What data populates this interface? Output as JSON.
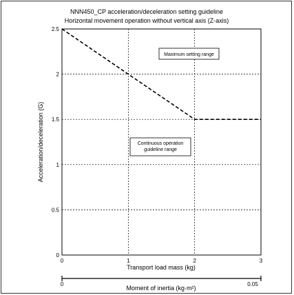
{
  "chart_data": {
    "type": "line",
    "title": "NNN450_CP acceleration/deceleration setting guideline",
    "subtitle": "Horizontal movement operation without vertical axis (Z-axis)",
    "xlabel": "Transport load mass (kg)",
    "ylabel": "Acceleration/deceleration (G)",
    "xlim": [
      0,
      3
    ],
    "ylim": [
      0,
      2.5
    ],
    "x_ticks": [
      "0",
      "1",
      "2",
      "3"
    ],
    "y_ticks": [
      "0",
      "0.5",
      "1",
      "1.5",
      "2",
      "2.5"
    ],
    "grid": true,
    "series": [
      {
        "x": [
          0,
          1,
          2,
          3
        ],
        "y": [
          2.5,
          2.0,
          1.5,
          1.5
        ]
      }
    ],
    "annotations": {
      "maximum": "Maximum setting range",
      "continuous_line1": "Continuous operation",
      "continuous_line2": "guideline range"
    },
    "secondary_axis": {
      "label": "Moment of inertia (kg·m²)",
      "min_label": "0",
      "max_label": "0.05"
    }
  }
}
